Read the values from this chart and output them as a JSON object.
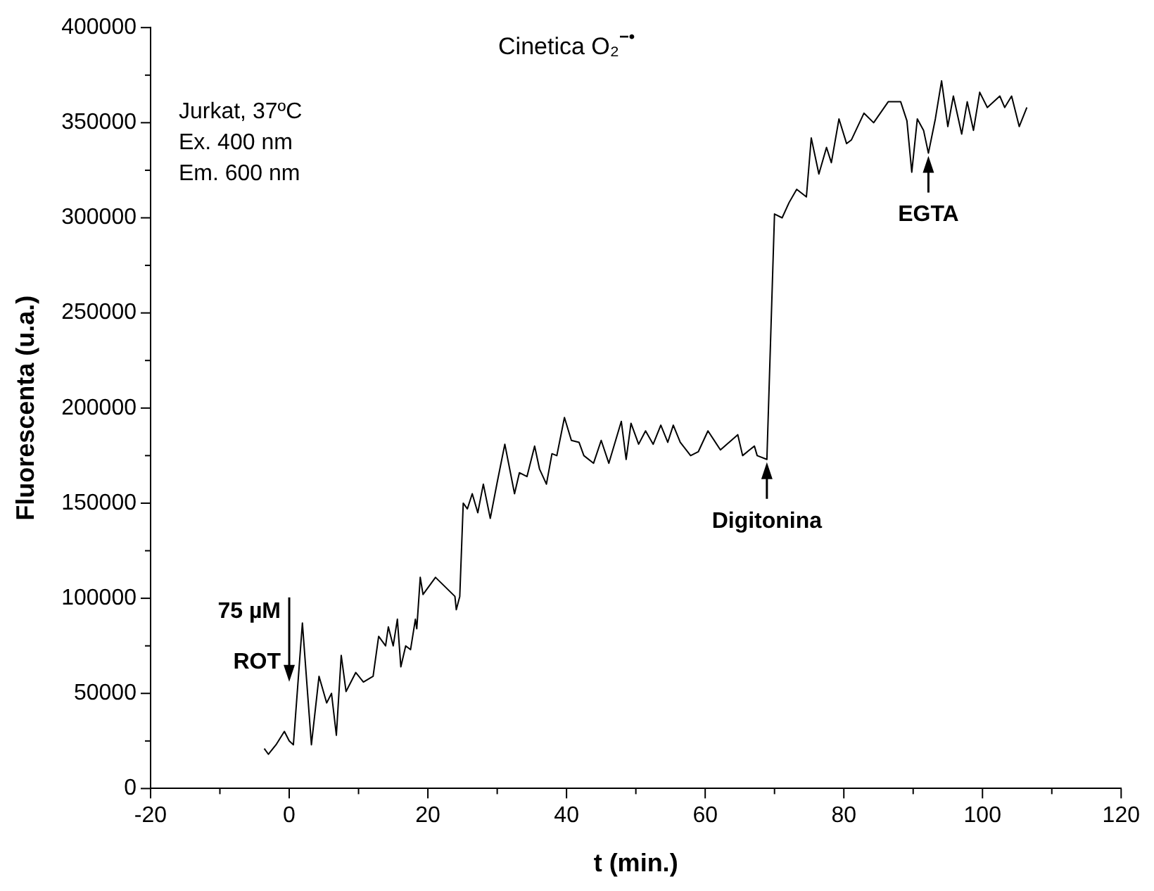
{
  "chart_data": {
    "type": "line",
    "title": "Cinetica O₂$^{−•}$",
    "xlabel": "t (min.)",
    "ylabel": "Fluorescenta (u.a.)",
    "annotations": [
      "Jurkat, 37ºC",
      "Ex. 400 nm",
      "Em. 600 nm",
      {
        "text": "75 µM ROT",
        "x": 0,
        "y": 25000
      },
      {
        "text": "Digitonina",
        "x": 68.9,
        "y": 173000
      },
      {
        "text": "EGTA",
        "x": 92.2,
        "y": 334000
      }
    ],
    "series": [
      {
        "color": "#000000",
        "x": [
          -3.6,
          -3.0,
          -1.9,
          -0.7,
          0,
          0.6,
          1.9,
          3.2,
          4.3,
          5.4,
          6.1,
          6.8,
          7.5,
          8.2,
          9.6,
          10.7,
          12.1,
          12.9,
          13.9,
          14.3,
          15,
          15.6,
          16.1,
          16.8,
          17.5,
          18.2,
          18.4,
          18.9,
          19.3,
          21.1,
          23.9,
          24.1,
          24.6,
          25.1,
          25.7,
          26.4,
          27.2,
          28,
          29,
          30,
          31.1,
          32.5,
          33.2,
          34.3,
          35.4,
          36.1,
          37.1,
          37.9,
          38.6,
          39.7,
          40.7,
          41.8,
          42.5,
          43.9,
          45,
          46.1,
          47.9,
          48.6,
          49.3,
          50.4,
          51.4,
          52.5,
          53.6,
          54.6,
          55.4,
          56.4,
          57.9,
          59,
          60.4,
          62.2,
          64.7,
          65.4,
          66.4,
          67.1,
          67.5,
          68.9,
          70,
          71.1,
          72.1,
          73.2,
          74.6,
          75.3,
          76.4,
          77.5,
          78.2,
          79.3,
          80.4,
          81.1,
          82.9,
          84.3,
          86.4,
          88.2,
          89.1,
          89.8,
          90.6,
          91.5,
          92.2,
          93.2,
          94.1,
          95,
          95.8,
          97,
          97.8,
          98.7,
          99.6,
          100.7,
          102.5,
          103.2,
          104.2,
          105.3,
          106.4
        ],
        "values": [
          21000,
          18000,
          23000,
          30000,
          25000,
          23000,
          87000,
          23000,
          59000,
          45000,
          50000,
          28000,
          70000,
          51000,
          61000,
          56000,
          59000,
          80000,
          75000,
          85000,
          75000,
          89000,
          64000,
          75000,
          73000,
          89000,
          84000,
          111000,
          102000,
          111000,
          101000,
          94000,
          101000,
          150000,
          147000,
          155000,
          145000,
          160000,
          142000,
          161000,
          181000,
          155000,
          166000,
          164000,
          180000,
          168000,
          160000,
          176000,
          175000,
          195000,
          183000,
          182000,
          175000,
          171000,
          183000,
          171000,
          193000,
          173000,
          192000,
          181000,
          188000,
          181000,
          191000,
          182000,
          191000,
          182000,
          175000,
          177000,
          188000,
          178000,
          186000,
          175000,
          178000,
          180000,
          175000,
          173000,
          302000,
          300000,
          308000,
          315000,
          311000,
          342000,
          323000,
          337000,
          329000,
          352000,
          339000,
          341000,
          355000,
          350000,
          361000,
          361000,
          351000,
          324000,
          352000,
          346000,
          334000,
          352000,
          372000,
          348000,
          364000,
          344000,
          361000,
          346000,
          366000,
          358000,
          364000,
          358000,
          364000,
          348000,
          358000
        ]
      }
    ],
    "xlim": [
      -20,
      120
    ],
    "xticks": [
      -20,
      {
        "value": -10,
        "label": null
      },
      0,
      {
        "value": 10,
        "label": null
      },
      20,
      {
        "value": 30,
        "label": null
      },
      40,
      {
        "value": 50,
        "label": null
      },
      60,
      {
        "value": 70,
        "label": null
      },
      80,
      {
        "value": 90,
        "label": null
      },
      100,
      {
        "value": 110,
        "label": null
      },
      120
    ],
    "ylim": [
      0,
      400000
    ],
    "yticks": [
      0,
      {
        "value": 25000,
        "label": null
      },
      50000,
      {
        "value": 75000,
        "label": null
      },
      100000,
      {
        "value": 125000,
        "label": null
      },
      150000,
      {
        "value": 175000,
        "label": null
      },
      200000,
      {
        "value": 225000,
        "label": null
      },
      250000,
      {
        "value": 275000,
        "label": null
      },
      300000,
      {
        "value": 325000,
        "label": null
      },
      350000,
      {
        "value": 375000,
        "label": null
      },
      400000
    ],
    "grid": false,
    "legend": false,
    "marker": "none",
    "line_style": "solid"
  }
}
